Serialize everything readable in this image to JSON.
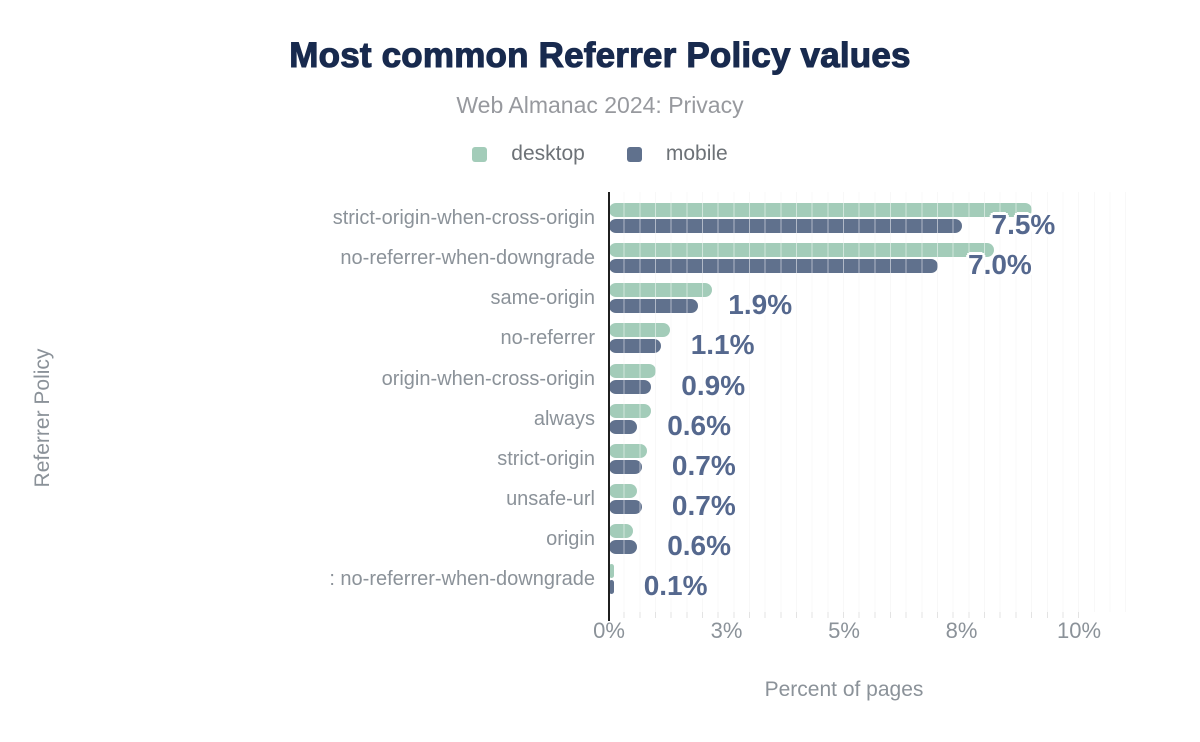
{
  "header": {
    "title": "Most common Referrer Policy values",
    "subtitle": "Web Almanac 2024: Privacy"
  },
  "legend": {
    "items": [
      {
        "name": "desktop",
        "label": "desktop",
        "color": "#a3ccb9"
      },
      {
        "name": "mobile",
        "label": "mobile",
        "color": "#60718d"
      }
    ]
  },
  "chart_data": {
    "type": "bar",
    "orientation": "horizontal",
    "title": "Most common Referrer Policy values",
    "subtitle": "Web Almanac 2024: Privacy",
    "xlabel": "Percent of pages",
    "ylabel": "Referrer Policy",
    "xlim": [
      0,
      10
    ],
    "x_ticks": [
      {
        "label": "0%",
        "value": 0
      },
      {
        "label": "3%",
        "value": 2.5
      },
      {
        "label": "5%",
        "value": 5
      },
      {
        "label": "8%",
        "value": 7.5
      },
      {
        "label": "10%",
        "value": 10
      }
    ],
    "grid": "minor-vertical",
    "legend_position": "top",
    "categories": [
      "strict-origin-when-cross-origin",
      "no-referrer-when-downgrade",
      "same-origin",
      "no-referrer",
      "origin-when-cross-origin",
      "always",
      "strict-origin",
      "unsafe-url",
      "origin",
      ": no-referrer-when-downgrade"
    ],
    "series": [
      {
        "name": "desktop",
        "values": [
          9.0,
          8.2,
          2.2,
          1.3,
          1.0,
          0.9,
          0.8,
          0.6,
          0.5,
          0.1
        ]
      },
      {
        "name": "mobile",
        "values": [
          7.5,
          7.0,
          1.9,
          1.1,
          0.9,
          0.6,
          0.7,
          0.7,
          0.6,
          0.1
        ]
      }
    ],
    "data_labels": [
      "7.5%",
      "7.0%",
      "1.9%",
      "1.1%",
      "0.9%",
      "0.6%",
      "0.7%",
      "0.7%",
      "0.6%",
      "0.1%"
    ]
  },
  "colors": {
    "desktop_bar": "#a3ccb9",
    "mobile_bar": "#60718d",
    "data_label": "#55688e",
    "title": "#182a4e",
    "subtitle": "#97999e",
    "axis_text": "#8b9299",
    "legend_text": "#6d7277",
    "axis_line": "#1f1f1f",
    "gridline": "#ededed"
  }
}
